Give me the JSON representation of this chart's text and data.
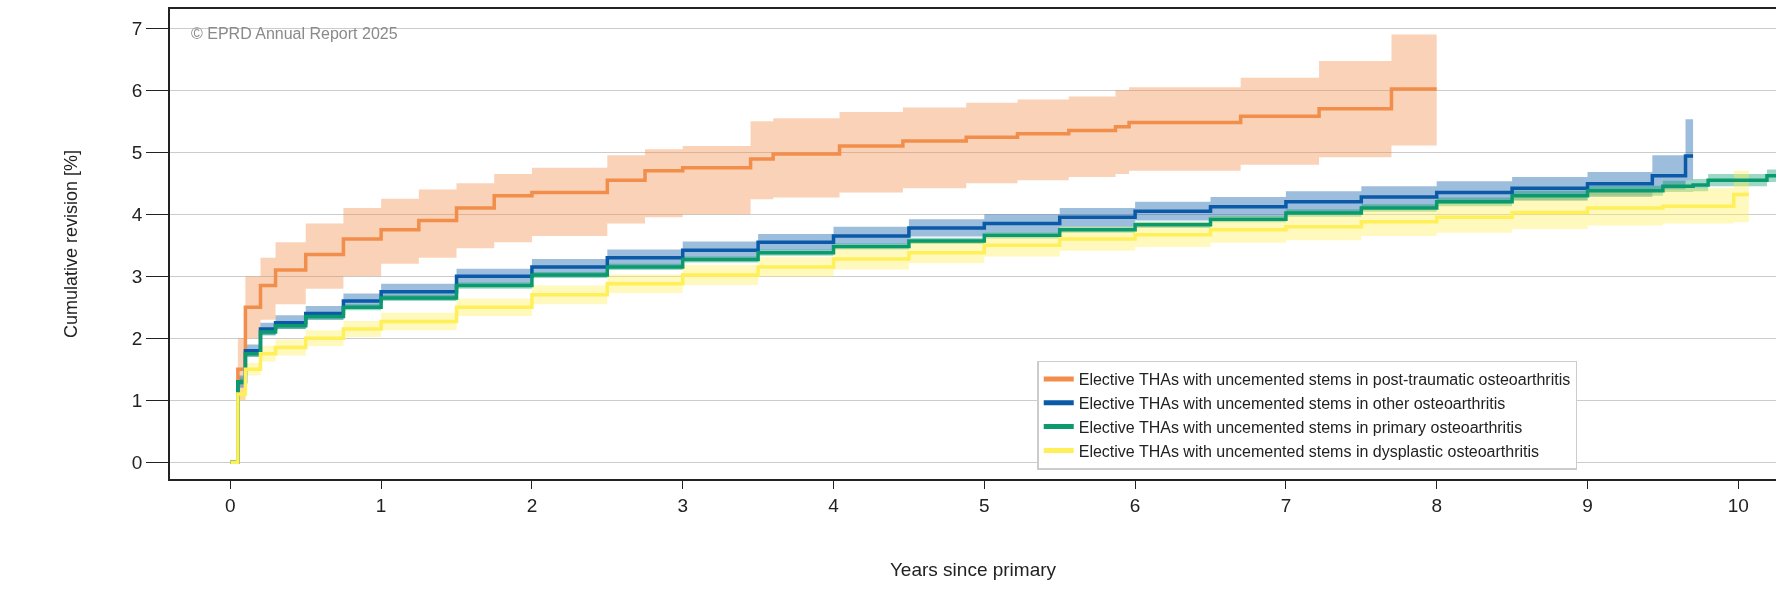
{
  "chart_data": {
    "type": "step",
    "xlabel": "Years since primary",
    "ylabel": "Cumulative revision [%]",
    "xlim": [
      -0.4,
      10.25
    ],
    "ylim": [
      -0.27,
      7.31
    ],
    "xticks": [
      0,
      1,
      2,
      3,
      4,
      5,
      6,
      7,
      8,
      9,
      10
    ],
    "yticks": [
      0,
      1,
      2,
      3,
      4,
      5,
      6,
      7
    ],
    "grid": "y",
    "legend": "bottom right",
    "annotations": [
      "© EPRD Annual Report 2025"
    ],
    "series": [
      {
        "name": "Elective THAs with uncemented stems in post-traumatic osteoarthritis",
        "color": "#f28e4b",
        "x": [
          0,
          0.05,
          0.1,
          0.2,
          0.3,
          0.5,
          0.75,
          1,
          1.25,
          1.5,
          1.75,
          2,
          2.5,
          2.75,
          3,
          3.45,
          3.6,
          4.04,
          4.46,
          4.88,
          5.22,
          5.56,
          5.87,
          5.96,
          6.7,
          7.22,
          7.7,
          8.0
        ],
        "values": [
          0,
          1.5,
          2.5,
          2.85,
          3.1,
          3.35,
          3.6,
          3.75,
          3.9,
          4.1,
          4.3,
          4.35,
          4.55,
          4.7,
          4.75,
          4.89,
          4.97,
          5.1,
          5.18,
          5.24,
          5.3,
          5.35,
          5.41,
          5.48,
          5.58,
          5.7,
          6.02,
          6.02
        ],
        "lower": [
          0,
          1.0,
          2.0,
          2.3,
          2.55,
          2.8,
          3.0,
          3.2,
          3.3,
          3.45,
          3.55,
          3.65,
          3.85,
          3.95,
          4.0,
          4.24,
          4.27,
          4.35,
          4.42,
          4.5,
          4.55,
          4.6,
          4.65,
          4.7,
          4.8,
          4.92,
          5.11,
          5.11
        ],
        "upper": [
          0,
          2.0,
          3.0,
          3.3,
          3.55,
          3.85,
          4.1,
          4.25,
          4.4,
          4.5,
          4.65,
          4.75,
          4.95,
          5.05,
          5.1,
          5.5,
          5.55,
          5.65,
          5.72,
          5.8,
          5.85,
          5.9,
          6.0,
          6.05,
          6.2,
          6.47,
          6.9,
          6.9
        ]
      },
      {
        "name": "Elective THAs with uncemented stems in other osteoarthritis",
        "color": "#0a5aa8",
        "x": [
          0,
          0.05,
          0.1,
          0.2,
          0.3,
          0.5,
          0.75,
          1,
          1.5,
          2,
          2.5,
          3,
          3.5,
          4,
          4.5,
          5,
          5.5,
          6,
          6.5,
          7,
          7.5,
          8,
          8.5,
          9,
          9.43,
          9.65,
          9.7
        ],
        "values": [
          0,
          1.3,
          1.8,
          2.15,
          2.25,
          2.4,
          2.6,
          2.75,
          3.0,
          3.15,
          3.3,
          3.42,
          3.55,
          3.65,
          3.78,
          3.85,
          3.95,
          4.05,
          4.12,
          4.2,
          4.28,
          4.35,
          4.42,
          4.49,
          4.62,
          4.94,
          4.94
        ],
        "lower": [
          0,
          1.2,
          1.7,
          2.05,
          2.15,
          2.3,
          2.48,
          2.62,
          2.88,
          3.03,
          3.17,
          3.3,
          3.42,
          3.52,
          3.64,
          3.7,
          3.8,
          3.9,
          3.96,
          4.03,
          4.1,
          4.17,
          4.22,
          4.28,
          4.4,
          4.54,
          4.54
        ],
        "upper": [
          0,
          1.4,
          1.9,
          2.25,
          2.37,
          2.52,
          2.72,
          2.88,
          3.12,
          3.28,
          3.43,
          3.56,
          3.68,
          3.8,
          3.92,
          4.0,
          4.1,
          4.2,
          4.28,
          4.37,
          4.45,
          4.53,
          4.6,
          4.68,
          4.95,
          5.53,
          5.53
        ]
      },
      {
        "name": "Elective THAs with uncemented stems in primary osteoarthritis",
        "color": "#0a9a6e",
        "x": [
          0,
          0.05,
          0.1,
          0.2,
          0.3,
          0.5,
          0.75,
          1,
          1.5,
          2,
          2.5,
          3,
          3.5,
          4,
          4.5,
          5,
          5.5,
          6,
          6.5,
          7,
          7.5,
          8,
          8.5,
          9,
          9.5,
          9.7,
          9.8,
          10.19,
          10.25
        ],
        "values": [
          0,
          1.3,
          1.75,
          2.1,
          2.2,
          2.35,
          2.5,
          2.65,
          2.85,
          3.02,
          3.15,
          3.27,
          3.38,
          3.48,
          3.57,
          3.66,
          3.75,
          3.83,
          3.92,
          4.02,
          4.1,
          4.2,
          4.3,
          4.38,
          4.45,
          4.47,
          4.55,
          4.62,
          4.62
        ],
        "lower": [
          0,
          1.25,
          1.7,
          2.05,
          2.15,
          2.3,
          2.45,
          2.6,
          2.8,
          2.97,
          3.1,
          3.22,
          3.33,
          3.43,
          3.52,
          3.61,
          3.7,
          3.78,
          3.87,
          3.96,
          4.04,
          4.13,
          4.22,
          4.3,
          4.36,
          4.37,
          4.45,
          4.52,
          4.52
        ],
        "upper": [
          0,
          1.35,
          1.8,
          2.15,
          2.25,
          2.4,
          2.55,
          2.7,
          2.9,
          3.07,
          3.2,
          3.32,
          3.43,
          3.53,
          3.62,
          3.71,
          3.8,
          3.88,
          3.97,
          4.08,
          4.16,
          4.27,
          4.38,
          4.46,
          4.54,
          4.57,
          4.65,
          4.72,
          4.72
        ]
      },
      {
        "name": "Elective THAs with uncemented stems in dysplastic osteoarthritis",
        "color": "#fff059",
        "x": [
          0,
          0.05,
          0.1,
          0.2,
          0.3,
          0.5,
          0.75,
          1,
          1.5,
          2,
          2.5,
          3,
          3.5,
          4,
          4.5,
          5,
          5.5,
          6,
          6.5,
          7,
          7.5,
          8,
          8.5,
          9,
          9.5,
          9.97,
          10.07
        ],
        "values": [
          0,
          1.1,
          1.5,
          1.75,
          1.85,
          2.0,
          2.15,
          2.27,
          2.5,
          2.7,
          2.88,
          3.02,
          3.15,
          3.28,
          3.38,
          3.5,
          3.6,
          3.67,
          3.75,
          3.8,
          3.88,
          3.95,
          4.03,
          4.1,
          4.13,
          4.32,
          4.32
        ],
        "lower": [
          0,
          1.0,
          1.4,
          1.62,
          1.72,
          1.87,
          2.02,
          2.13,
          2.36,
          2.55,
          2.73,
          2.86,
          2.99,
          3.11,
          3.21,
          3.32,
          3.41,
          3.47,
          3.54,
          3.58,
          3.65,
          3.7,
          3.76,
          3.82,
          3.85,
          3.87,
          3.87
        ],
        "upper": [
          0,
          1.2,
          1.6,
          1.88,
          1.98,
          2.13,
          2.28,
          2.41,
          2.64,
          2.85,
          3.03,
          3.18,
          3.31,
          3.45,
          3.55,
          3.68,
          3.79,
          3.87,
          3.96,
          4.02,
          4.11,
          4.2,
          4.3,
          4.38,
          4.42,
          4.7,
          4.7
        ]
      }
    ]
  }
}
